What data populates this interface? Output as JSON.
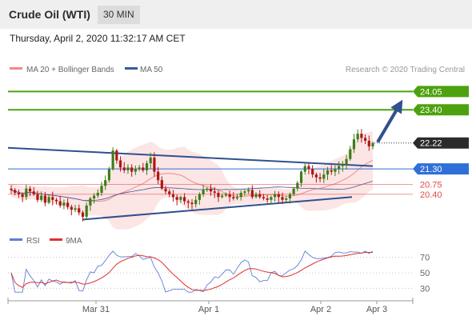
{
  "header": {
    "title": "Crude Oil (WTI)",
    "timeframe": "30 MIN",
    "datetime": "Thursday, April 2, 2020 11:32:17 AM CET"
  },
  "price_legend": [
    {
      "label": "MA 20 + Bollinger Bands",
      "color": "#f08a8a"
    },
    {
      "label": "MA 50",
      "color": "#3a5a9c"
    }
  ],
  "copyright": "Research © 2020 Trading Central",
  "rsi_legend": [
    {
      "label": "RSI",
      "color": "#5b7fd6"
    },
    {
      "label": "9MA",
      "color": "#e23030"
    }
  ],
  "colors": {
    "resistance": "#4ca20f",
    "pivot": "#2f6fd8",
    "support": "#e04a4a",
    "current": "#2b2b2b",
    "trendline": "#30508f",
    "candle_up": "#3d7d18",
    "candle_down": "#b01515"
  },
  "chart_data": [
    {
      "type": "candlestick",
      "title": "Crude Oil (WTI)",
      "timeframe": "30 MIN",
      "x_tick_labels": [
        "Mar 31",
        "Apr 1",
        "Apr 2",
        "Apr 3"
      ],
      "ylim": [
        19.2,
        24.6
      ],
      "close_series": [
        20.55,
        20.45,
        20.4,
        20.3,
        20.6,
        20.5,
        20.4,
        20.2,
        20.35,
        20.1,
        20.3,
        20.2,
        20.15,
        20.0,
        20.1,
        19.95,
        19.85,
        19.9,
        19.75,
        19.6,
        20.0,
        20.25,
        20.35,
        20.45,
        20.7,
        20.9,
        21.3,
        21.95,
        21.6,
        21.35,
        21.25,
        21.35,
        21.2,
        21.3,
        21.35,
        21.25,
        21.5,
        21.7,
        21.2,
        20.9,
        20.6,
        20.5,
        20.4,
        20.3,
        20.2,
        20.3,
        20.15,
        20.1,
        20.05,
        20.2,
        20.4,
        20.55,
        20.6,
        20.5,
        20.45,
        20.3,
        20.35,
        20.4,
        20.3,
        20.25,
        20.3,
        20.45,
        20.5,
        20.55,
        20.3,
        20.4,
        20.3,
        20.25,
        20.2,
        20.3,
        20.4,
        20.3,
        20.2,
        20.25,
        20.4,
        20.6,
        20.8,
        21.2,
        21.4,
        21.3,
        21.1,
        21.0,
        20.95,
        21.1,
        21.25,
        21.2,
        21.3,
        21.4,
        21.45,
        21.65,
        22.0,
        22.35,
        22.55,
        22.4,
        22.3,
        22.1,
        22.22
      ],
      "levels": [
        {
          "value": 24.05,
          "label": "24.05",
          "kind": "resistance"
        },
        {
          "value": 23.4,
          "label": "23.40",
          "kind": "resistance"
        },
        {
          "value": 22.22,
          "label": "22.22",
          "kind": "current"
        },
        {
          "value": 21.3,
          "label": "21.30",
          "kind": "pivot"
        },
        {
          "value": 20.75,
          "label": "20.75",
          "kind": "support"
        },
        {
          "value": 20.4,
          "label": "20.40",
          "kind": "support"
        }
      ],
      "series": [
        {
          "name": "MA 20 + Bollinger Bands"
        },
        {
          "name": "MA 50"
        }
      ]
    },
    {
      "type": "line",
      "ylim": [
        20,
        80
      ],
      "y_ticks": [
        70,
        50,
        30
      ],
      "series": [
        {
          "name": "RSI"
        },
        {
          "name": "9MA"
        }
      ]
    }
  ]
}
